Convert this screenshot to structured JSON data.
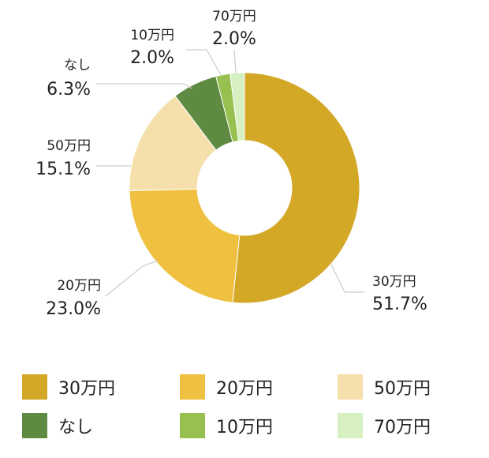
{
  "chart_data": {
    "type": "pie",
    "donut": true,
    "legend_position": "bottom",
    "start_angle_deg": 0,
    "direction": "clockwise",
    "slices": [
      {
        "label": "30万円",
        "value": 51.7,
        "value_text": "51.7%",
        "color": "#D4A827"
      },
      {
        "label": "20万円",
        "value": 23.0,
        "value_text": "23.0%",
        "color": "#F0C040"
      },
      {
        "label": "50万円",
        "value": 15.1,
        "value_text": "15.1%",
        "color": "#F5DFAA"
      },
      {
        "label": "なし",
        "value": 6.3,
        "value_text": "6.3%",
        "color": "#5E8A42"
      },
      {
        "label": "10万円",
        "value": 2.0,
        "value_text": "2.0%",
        "color": "#97C050"
      },
      {
        "label": "70万円",
        "value": 2.0,
        "value_text": "2.0%",
        "color": "#D6F0C2"
      }
    ]
  }
}
